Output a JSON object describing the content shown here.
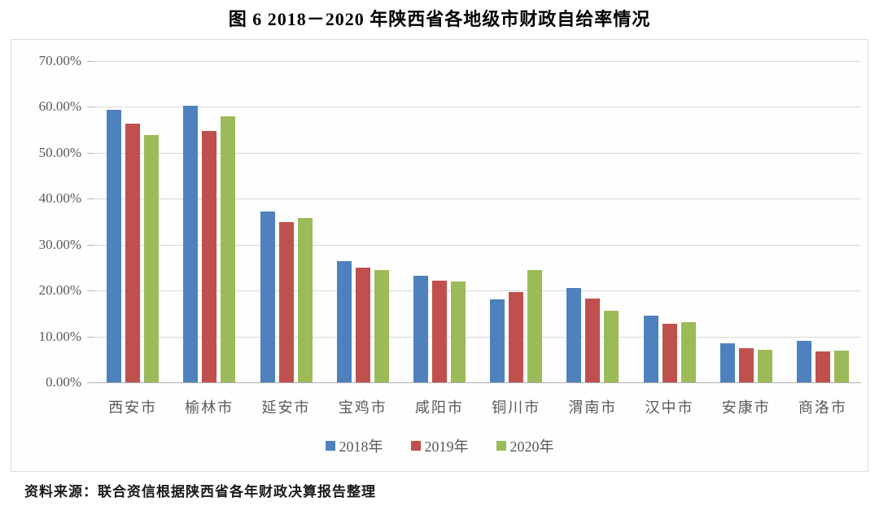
{
  "title": "图 6  2018－2020 年陕西省各地级市财政自给率情况",
  "source": "资料来源：联合资信根据陕西省各年财政决算报告整理",
  "colors": {
    "series_2018": "#4F81BD",
    "series_2019": "#C0504D",
    "series_2020": "#9BBB59",
    "gridline": "#d9d9d9",
    "axis_baseline": "#adadad",
    "axis_text": "#595959"
  },
  "chart_data": {
    "type": "bar",
    "title": "图 6  2018－2020 年陕西省各地级市财政自给率情况",
    "categories": [
      "西安市",
      "榆林市",
      "延安市",
      "宝鸡市",
      "咸阳市",
      "铜川市",
      "渭南市",
      "汉中市",
      "安康市",
      "商洛市"
    ],
    "series": [
      {
        "name": "2018年",
        "color": "#4F81BD",
        "values": [
          59.4,
          60.2,
          37.3,
          26.5,
          23.3,
          18.1,
          20.5,
          14.5,
          8.6,
          9.0
        ]
      },
      {
        "name": "2019年",
        "color": "#C0504D",
        "values": [
          56.4,
          54.8,
          35.0,
          25.0,
          22.1,
          19.6,
          18.3,
          12.8,
          7.5,
          6.8
        ]
      },
      {
        "name": "2020年",
        "color": "#9BBB59",
        "values": [
          53.8,
          58.0,
          35.8,
          24.5,
          21.9,
          24.4,
          15.6,
          13.2,
          7.1,
          7.0
        ]
      }
    ],
    "xlabel": "",
    "ylabel": "",
    "ylim": [
      0,
      70
    ],
    "ytick_step": 10,
    "yticks": [
      "70.00%",
      "60.00%",
      "50.00%",
      "40.00%",
      "30.00%",
      "20.00%",
      "10.00%",
      "0.00%"
    ],
    "grid": true,
    "legend_position": "bottom"
  }
}
